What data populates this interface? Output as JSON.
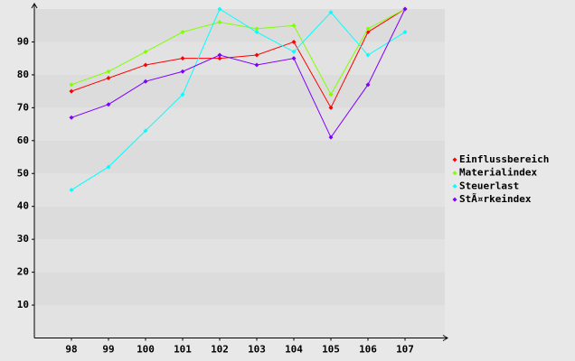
{
  "chart_data": {
    "type": "line",
    "categories": [
      "98",
      "99",
      "100",
      "101",
      "102",
      "103",
      "104",
      "105",
      "106",
      "107"
    ],
    "series": [
      {
        "name": "Einflussbereich",
        "color": "#ff0000",
        "values": [
          75,
          79,
          83,
          85,
          85,
          86,
          90,
          70,
          93,
          100
        ]
      },
      {
        "name": "Materialindex",
        "color": "#80ff00",
        "values": [
          77,
          81,
          87,
          93,
          96,
          94,
          95,
          74,
          94,
          100
        ]
      },
      {
        "name": "Steuerlast",
        "color": "#00ffff",
        "values": [
          45,
          52,
          63,
          74,
          100,
          93,
          87,
          99,
          86,
          93
        ]
      },
      {
        "name": "StÃ¤rkeindex",
        "color": "#8000ff",
        "values": [
          67,
          71,
          78,
          81,
          86,
          83,
          85,
          61,
          77,
          100
        ]
      }
    ],
    "ylim": [
      0,
      100
    ],
    "yticks": [
      10,
      20,
      30,
      40,
      50,
      60,
      70,
      80,
      90
    ],
    "grid": true,
    "legend": "right"
  }
}
